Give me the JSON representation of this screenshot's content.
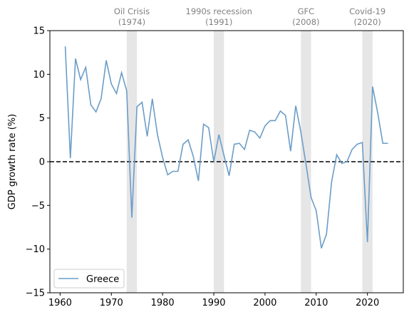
{
  "chart_data": {
    "type": "line",
    "ylabel": "GDP growth rate (%)",
    "xlim": [
      1958,
      2027
    ],
    "ylim": [
      -15,
      15
    ],
    "xticks": [
      1960,
      1970,
      1980,
      1990,
      2000,
      2010,
      2020
    ],
    "yticks": [
      -15,
      -10,
      -5,
      0,
      5,
      10,
      15
    ],
    "grid": false,
    "legend_position": "lower-left",
    "reference_line": {
      "y": 0,
      "style": "dashed",
      "color": "#000000"
    },
    "events": [
      {
        "name": "Oil Crisis",
        "year_label": "(1974)",
        "start": 1973,
        "end": 1975
      },
      {
        "name": "1990s recession",
        "year_label": "(1991)",
        "start": 1990,
        "end": 1992
      },
      {
        "name": "GFC",
        "year_label": "(2008)",
        "start": 2007,
        "end": 2009
      },
      {
        "name": "Covid-19",
        "year_label": "(2020)",
        "start": 2019,
        "end": 2021
      }
    ],
    "series": [
      {
        "name": "Greece",
        "color": "#6b9dc8",
        "x": [
          1961,
          1962,
          1963,
          1964,
          1965,
          1966,
          1967,
          1968,
          1969,
          1970,
          1971,
          1972,
          1973,
          1974,
          1975,
          1976,
          1977,
          1978,
          1979,
          1980,
          1981,
          1982,
          1983,
          1984,
          1985,
          1986,
          1987,
          1988,
          1989,
          1990,
          1991,
          1992,
          1993,
          1994,
          1995,
          1996,
          1997,
          1998,
          1999,
          2000,
          2001,
          2002,
          2003,
          2004,
          2005,
          2006,
          2007,
          2008,
          2009,
          2010,
          2011,
          2012,
          2013,
          2014,
          2015,
          2016,
          2017,
          2018,
          2019,
          2020,
          2021,
          2022,
          2023,
          2024
        ],
        "y": [
          13.2,
          0.4,
          11.8,
          9.4,
          10.8,
          6.5,
          5.7,
          7.2,
          11.6,
          8.9,
          7.8,
          10.2,
          8.1,
          -6.4,
          6.3,
          6.8,
          2.9,
          7.2,
          3.1,
          0.5,
          -1.5,
          -1.1,
          -1.1,
          2.0,
          2.5,
          0.6,
          -2.2,
          4.3,
          3.9,
          0.0,
          3.1,
          0.7,
          -1.6,
          2.0,
          2.1,
          1.4,
          3.6,
          3.4,
          2.7,
          4.1,
          4.7,
          4.7,
          5.8,
          5.3,
          1.2,
          6.4,
          3.4,
          -0.3,
          -4.1,
          -5.6,
          -9.9,
          -8.3,
          -2.3,
          0.8,
          -0.2,
          0.0,
          1.4,
          2.0,
          2.2,
          -9.2,
          8.6,
          5.6,
          2.1,
          2.1
        ]
      }
    ]
  }
}
